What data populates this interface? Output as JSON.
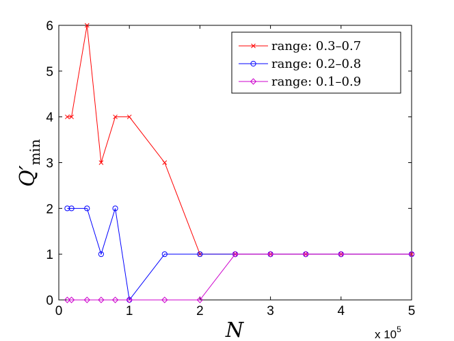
{
  "chart_data": {
    "type": "line",
    "xlabel": "N",
    "ylabel": "Q′",
    "ylabel_sub": "min",
    "x_multiplier_base": "x 10",
    "x_multiplier_exp": "5",
    "xlim": [
      0,
      5
    ],
    "ylim": [
      0,
      6
    ],
    "xticks": [
      "0",
      "1",
      "2",
      "3",
      "4",
      "5"
    ],
    "yticks": [
      "0",
      "1",
      "2",
      "3",
      "4",
      "5",
      "6"
    ],
    "grid": false,
    "legend_position": "top-right",
    "series": [
      {
        "name": "range: 0.3–0.7",
        "color": "#ff0000",
        "marker": "x",
        "x": [
          0.12,
          0.18,
          0.4,
          0.6,
          0.8,
          1.0,
          1.5,
          2.0,
          2.5,
          3.0,
          3.5,
          4.0,
          5.0
        ],
        "y": [
          4,
          4,
          6,
          3,
          4,
          4,
          3,
          1,
          1,
          1,
          1,
          1,
          1
        ]
      },
      {
        "name": "range: 0.2–0.8",
        "color": "#0000ff",
        "marker": "o",
        "x": [
          0.12,
          0.18,
          0.4,
          0.6,
          0.8,
          1.0,
          1.5,
          2.0,
          2.5,
          3.0,
          3.5,
          4.0,
          5.0
        ],
        "y": [
          2,
          2,
          2,
          1,
          2,
          0,
          1,
          1,
          1,
          1,
          1,
          1,
          1
        ]
      },
      {
        "name": "range: 0.1–0.9",
        "color": "#cc00cc",
        "marker": "d",
        "x": [
          0.12,
          0.18,
          0.4,
          0.6,
          0.8,
          1.0,
          1.5,
          2.0,
          2.5,
          3.0,
          3.5,
          4.0,
          5.0
        ],
        "y": [
          0,
          0,
          0,
          0,
          0,
          0,
          0,
          0,
          1,
          1,
          1,
          1,
          1
        ]
      }
    ]
  }
}
